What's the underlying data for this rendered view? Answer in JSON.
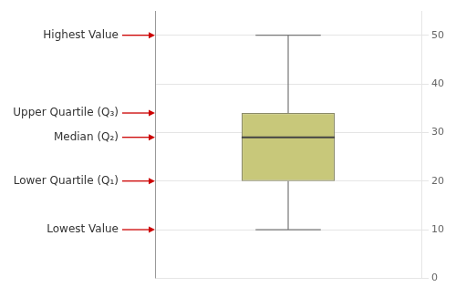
{
  "chart_data": {
    "type": "box",
    "lowest": 10,
    "q1": 20,
    "median": 29,
    "q3": 34,
    "highest": 50,
    "color": "#c8c87a",
    "ylim": [
      0,
      55
    ],
    "yticks": [
      0,
      10,
      20,
      30,
      40,
      50
    ],
    "grid": true,
    "tick_labels": "y",
    "annotations": [
      {
        "label": "Highest Value",
        "value": 50
      },
      {
        "label": "Upper Quartile (Q₃)",
        "value": 34
      },
      {
        "label": "Median (Q₂)",
        "value": 29
      },
      {
        "label": "Lower Quartile (Q₁)",
        "value": 20
      },
      {
        "label": "Lowest Value",
        "value": 10
      }
    ]
  }
}
